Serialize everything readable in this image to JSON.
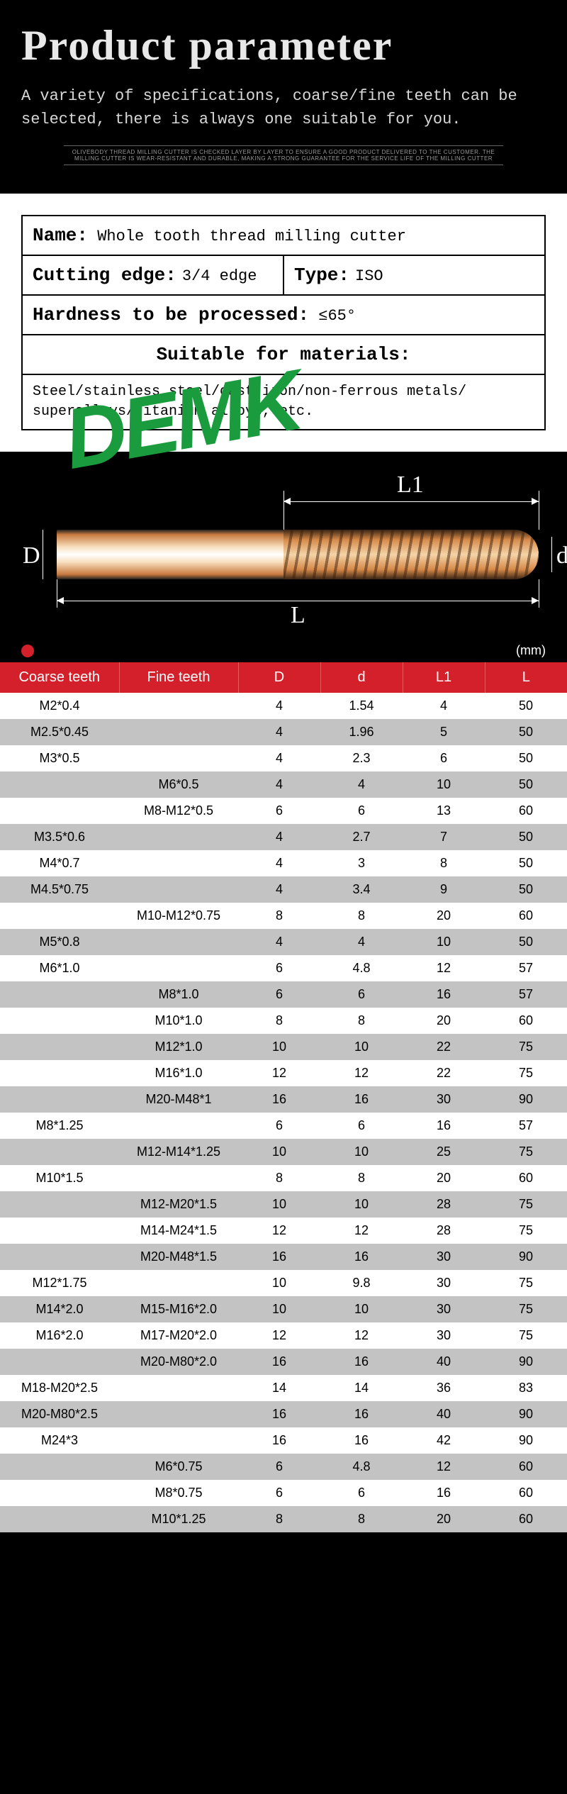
{
  "header": {
    "title": "Product parameter",
    "subtitle": "A variety of specifications, coarse/fine teeth can be selected, there is always one suitable for you.",
    "smallprint": "OLIVEBODY THREAD MILLING CUTTER IS CHECKED LAYER BY LAYER TO ENSURE A GOOD PRODUCT DELIVERED TO THE CUSTOMER. THE MILLING CUTTER IS WEAR-RESISTANT AND DURABLE, MAKING A STRONG GUARANTEE FOR THE SERVICE LIFE OF THE MILLING CUTTER"
  },
  "spec": {
    "name_label": "Name:",
    "name_value": "Whole tooth thread milling cutter",
    "edge_label": "Cutting edge:",
    "edge_value": "3/4 edge",
    "type_label": "Type:",
    "type_value": "ISO",
    "hardness_label": "Hardness to be processed:",
    "hardness_value": "≤65°",
    "materials_label": "Suitable for materials:",
    "materials_value": "Steel/stainless steel/cast iron/non-ferrous metals/ superalloys/titanium alloys, etc."
  },
  "watermark": "DEMK",
  "diagram": {
    "D": "D",
    "d": "d",
    "L": "L",
    "L1": "L1"
  },
  "unit": "(mm)",
  "table": {
    "headers": [
      "Coarse teeth",
      "Fine teeth",
      "D",
      "d",
      "L1",
      "L"
    ],
    "rows": [
      [
        "M2*0.4",
        "",
        "4",
        "1.54",
        "4",
        "50"
      ],
      [
        "M2.5*0.45",
        "",
        "4",
        "1.96",
        "5",
        "50"
      ],
      [
        "M3*0.5",
        "",
        "4",
        "2.3",
        "6",
        "50"
      ],
      [
        "",
        "M6*0.5",
        "4",
        "4",
        "10",
        "50"
      ],
      [
        "",
        "M8-M12*0.5",
        "6",
        "6",
        "13",
        "60"
      ],
      [
        "M3.5*0.6",
        "",
        "4",
        "2.7",
        "7",
        "50"
      ],
      [
        "M4*0.7",
        "",
        "4",
        "3",
        "8",
        "50"
      ],
      [
        "M4.5*0.75",
        "",
        "4",
        "3.4",
        "9",
        "50"
      ],
      [
        "",
        "M10-M12*0.75",
        "8",
        "8",
        "20",
        "60"
      ],
      [
        "M5*0.8",
        "",
        "4",
        "4",
        "10",
        "50"
      ],
      [
        "M6*1.0",
        "",
        "6",
        "4.8",
        "12",
        "57"
      ],
      [
        "",
        "M8*1.0",
        "6",
        "6",
        "16",
        "57"
      ],
      [
        "",
        "M10*1.0",
        "8",
        "8",
        "20",
        "60"
      ],
      [
        "",
        "M12*1.0",
        "10",
        "10",
        "22",
        "75"
      ],
      [
        "",
        "M16*1.0",
        "12",
        "12",
        "22",
        "75"
      ],
      [
        "",
        "M20-M48*1",
        "16",
        "16",
        "30",
        "90"
      ],
      [
        "M8*1.25",
        "",
        "6",
        "6",
        "16",
        "57"
      ],
      [
        "",
        "M12-M14*1.25",
        "10",
        "10",
        "25",
        "75"
      ],
      [
        "M10*1.5",
        "",
        "8",
        "8",
        "20",
        "60"
      ],
      [
        "",
        "M12-M20*1.5",
        "10",
        "10",
        "28",
        "75"
      ],
      [
        "",
        "M14-M24*1.5",
        "12",
        "12",
        "28",
        "75"
      ],
      [
        "",
        "M20-M48*1.5",
        "16",
        "16",
        "30",
        "90"
      ],
      [
        "M12*1.75",
        "",
        "10",
        "9.8",
        "30",
        "75"
      ],
      [
        "M14*2.0",
        "M15-M16*2.0",
        "10",
        "10",
        "30",
        "75"
      ],
      [
        "M16*2.0",
        "M17-M20*2.0",
        "12",
        "12",
        "30",
        "75"
      ],
      [
        "",
        "M20-M80*2.0",
        "16",
        "16",
        "40",
        "90"
      ],
      [
        "M18-M20*2.5",
        "",
        "14",
        "14",
        "36",
        "83"
      ],
      [
        "M20-M80*2.5",
        "",
        "16",
        "16",
        "40",
        "90"
      ],
      [
        "M24*3",
        "",
        "16",
        "16",
        "42",
        "90"
      ],
      [
        "",
        "M6*0.75",
        "6",
        "4.8",
        "12",
        "60"
      ],
      [
        "",
        "M8*0.75",
        "6",
        "6",
        "16",
        "60"
      ],
      [
        "",
        "M10*1.25",
        "8",
        "8",
        "20",
        "60"
      ]
    ]
  },
  "colors": {
    "header_bg": "#000000",
    "header_text": "#e8e8e8",
    "spec_bg": "#ffffff",
    "watermark": "#1a9b3d",
    "table_header_bg": "#d4202a",
    "table_header_text": "#ffffff",
    "row_odd_bg": "#ffffff",
    "row_even_bg": "#c3c3c3"
  }
}
